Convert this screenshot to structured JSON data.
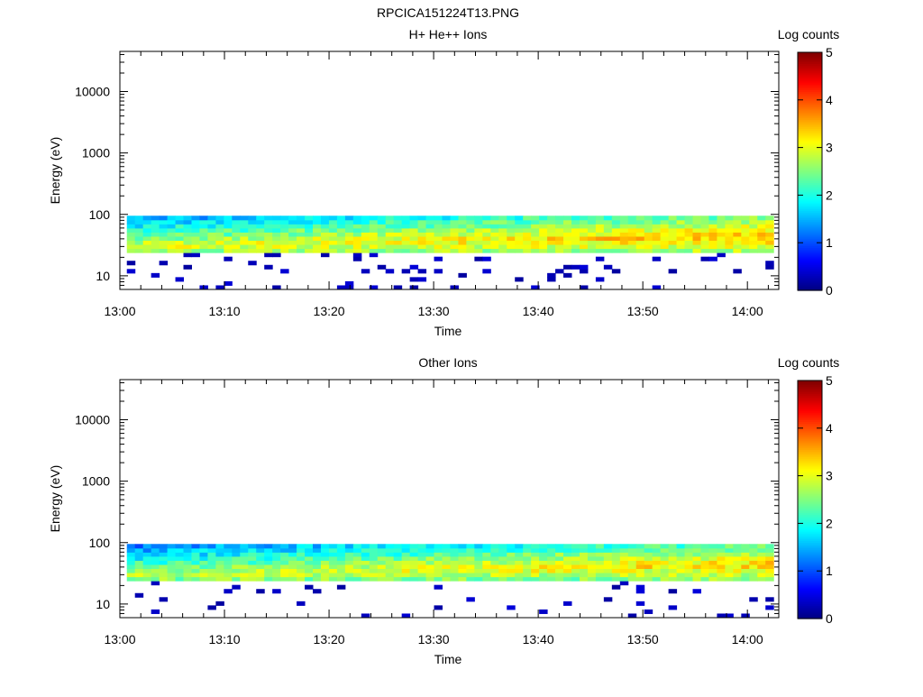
{
  "figure_title": "RPCICA151224T13.PNG",
  "chart_data": [
    {
      "type": "heatmap",
      "title": "H+ He++ Ions",
      "xlabel": "Time",
      "ylabel": "Energy (eV)",
      "x_ticks": [
        "13:00",
        "13:10",
        "13:20",
        "13:30",
        "13:40",
        "13:50",
        "14:00"
      ],
      "y_ticks": [
        "10",
        "100",
        "1000",
        "10000"
      ],
      "y_scale": "log",
      "ylim": [
        6,
        45000
      ],
      "xlim": [
        "13:00",
        "14:03"
      ],
      "data_time_range": [
        "13:00:40",
        "14:02:30"
      ],
      "band_energy_ev": [
        25,
        95
      ],
      "colorbar_label": "Log counts",
      "colorbar_ticks": [
        "0",
        "1",
        "2",
        "3",
        "4",
        "5"
      ],
      "colorbar_range": [
        0,
        5
      ],
      "colorscale": "jet",
      "grid": false,
      "seed": 7
    },
    {
      "type": "heatmap",
      "title": "Other Ions",
      "xlabel": "Time",
      "ylabel": "Energy (eV)",
      "x_ticks": [
        "13:00",
        "13:10",
        "13:20",
        "13:30",
        "13:40",
        "13:50",
        "14:00"
      ],
      "y_ticks": [
        "10",
        "100",
        "1000",
        "10000"
      ],
      "y_scale": "log",
      "ylim": [
        6,
        45000
      ],
      "xlim": [
        "13:00",
        "14:03"
      ],
      "data_time_range": [
        "13:00:40",
        "14:02:30"
      ],
      "band_energy_ev": [
        25,
        95
      ],
      "colorbar_label": "Log counts",
      "colorbar_ticks": [
        "0",
        "1",
        "2",
        "3",
        "4",
        "5"
      ],
      "colorbar_range": [
        0,
        5
      ],
      "colorscale": "jet",
      "grid": false,
      "seed": 11
    }
  ]
}
